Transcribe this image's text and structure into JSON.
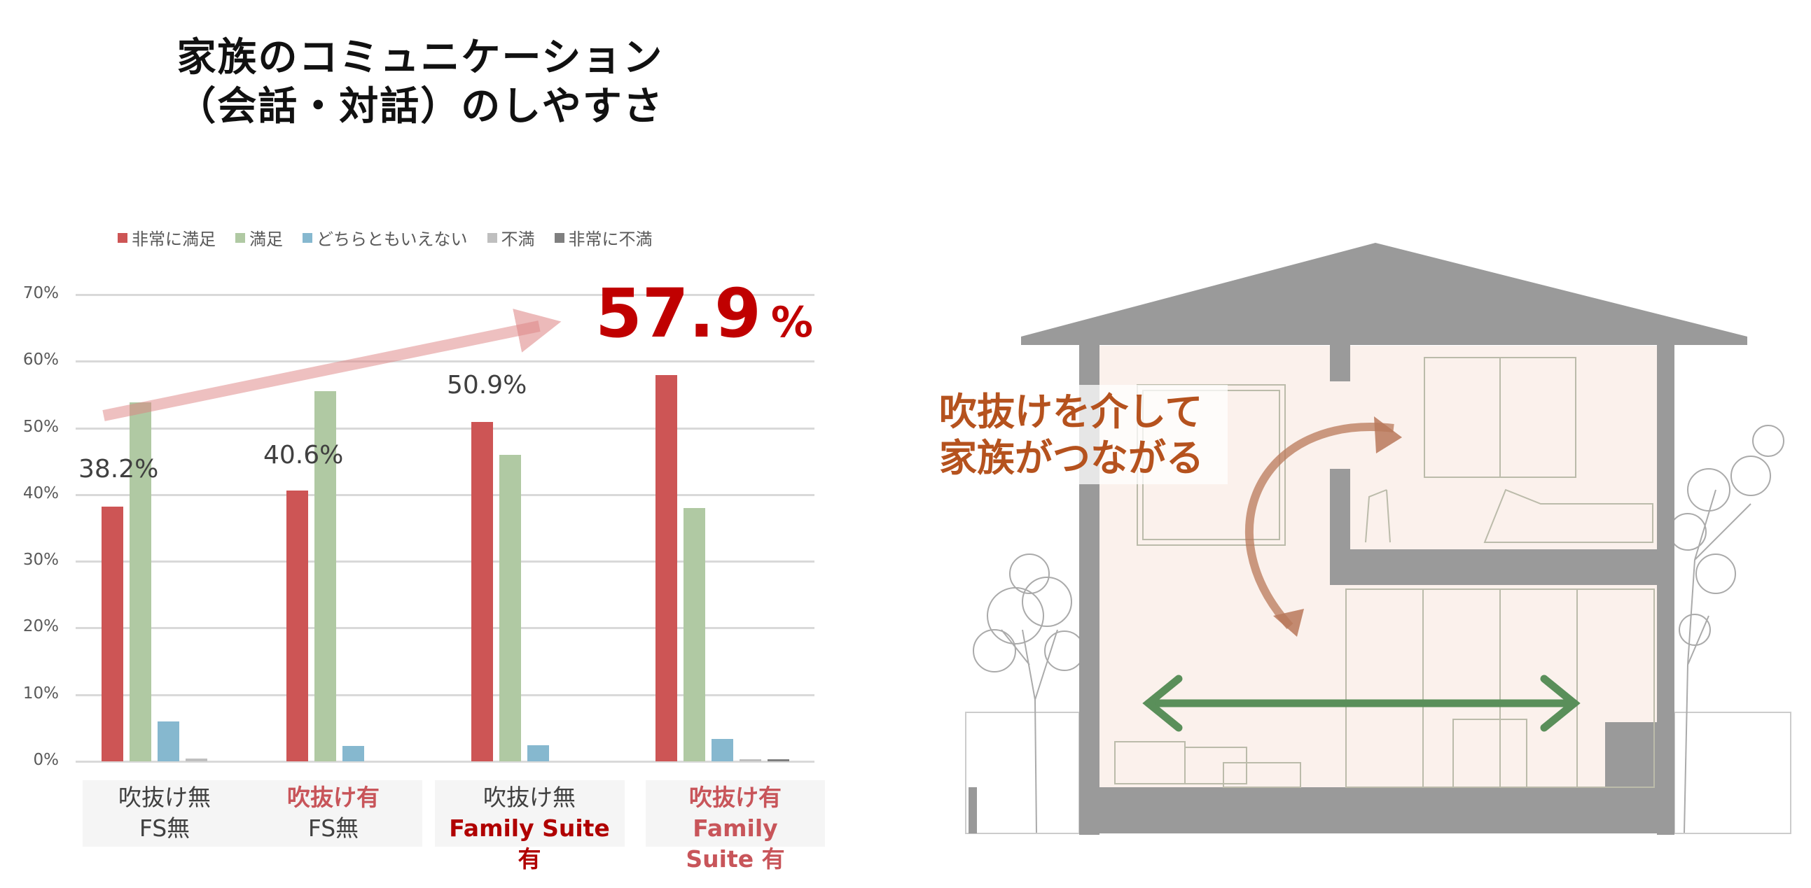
{
  "title": {
    "line1": "家族のコミュニケーション",
    "line2": "（会話・対話）のしやすさ"
  },
  "highlight": {
    "value": "57.9",
    "unit": "%"
  },
  "house": {
    "caption_line1": "吹抜けを介して",
    "caption_line2": "家族がつながる"
  },
  "chart_data": {
    "type": "bar",
    "title": "",
    "ylim": [
      0,
      70
    ],
    "yticks": [
      "0%",
      "10%",
      "20%",
      "30%",
      "40%",
      "50%",
      "60%",
      "70%"
    ],
    "grid": true,
    "legend_position": "top",
    "categories": [
      {
        "line1": "吹抜け無",
        "line2": "FS無",
        "style1": "gray",
        "style2": "gray"
      },
      {
        "line1": "吹抜け有",
        "line2": "FS無",
        "style1": "red",
        "style2": "gray"
      },
      {
        "line1": "吹抜け無",
        "line2": "Family Suite有",
        "style1": "gray",
        "style2": "dred"
      },
      {
        "line1": "吹抜け有",
        "line2": "Family Suite 有",
        "style1": "red",
        "style2": "red"
      }
    ],
    "series": [
      {
        "name": "非常に満足",
        "color": "#cd5555",
        "values": [
          38.2,
          40.6,
          50.9,
          57.9
        ]
      },
      {
        "name": "満足",
        "color": "#b0c9a3",
        "values": [
          53.8,
          55.5,
          46.0,
          38.0
        ]
      },
      {
        "name": "どちらともいえない",
        "color": "#86b8cf",
        "values": [
          6.0,
          2.3,
          2.4,
          3.4
        ]
      },
      {
        "name": "不満",
        "color": "#bfbfbf",
        "values": [
          0.4,
          0,
          0,
          0.2
        ]
      },
      {
        "name": "非常に不満",
        "color": "#7f7f7f",
        "values": [
          0,
          0,
          0,
          0.2
        ]
      }
    ],
    "data_labels": [
      "38.2%",
      "40.6%",
      "50.9%",
      "57.9%"
    ]
  }
}
